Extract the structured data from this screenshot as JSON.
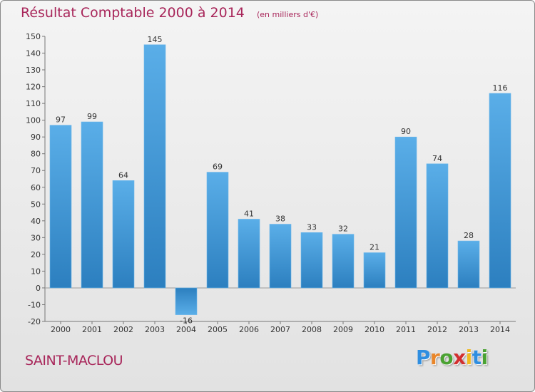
{
  "header": {
    "title": "Résultat Comptable 2000 à 2014",
    "unit": "(en milliers d'€)"
  },
  "footer": {
    "city": "SAINT-MACLOU",
    "logo_letters": [
      {
        "char": "P",
        "color": "#2f8ee0"
      },
      {
        "char": "r",
        "color": "#e9862a"
      },
      {
        "char": "o",
        "color": "#4aa232"
      },
      {
        "char": "x",
        "color": "#d22f2f"
      },
      {
        "char": "i",
        "color": "#f0b920"
      },
      {
        "char": "t",
        "color": "#2f8ee0"
      },
      {
        "char": "i",
        "color": "#4aa232"
      }
    ]
  },
  "colors": {
    "title": "#a8265a",
    "bar_light": "#5aaee8",
    "bar_dark": "#2c7fbf"
  },
  "chart_data": {
    "type": "bar",
    "title": "Résultat Comptable 2000 à 2014",
    "subtitle": "(en milliers d'€)",
    "xlabel": "",
    "ylabel": "",
    "categories": [
      "2000",
      "2001",
      "2002",
      "2003",
      "2004",
      "2005",
      "2006",
      "2007",
      "2008",
      "2009",
      "2010",
      "2011",
      "2012",
      "2013",
      "2014"
    ],
    "values": [
      97,
      99,
      64,
      145,
      -16,
      69,
      41,
      38,
      33,
      32,
      21,
      90,
      74,
      28,
      116
    ],
    "ylim": [
      -20,
      150
    ],
    "ytick_step": 10,
    "grid": false,
    "data_labels": true
  }
}
